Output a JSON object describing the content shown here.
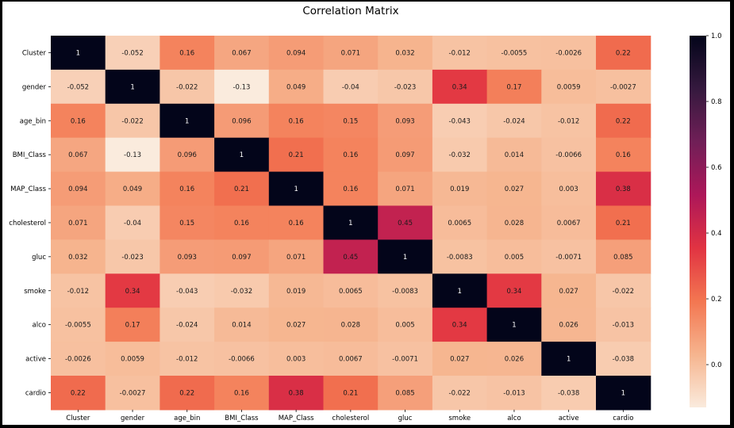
{
  "chart_data": {
    "type": "heatmap",
    "title": "Correlation Matrix",
    "labels": [
      "Cluster",
      "gender",
      "age_bin",
      "BMI_Class",
      "MAP_Class",
      "cholesterol",
      "gluc",
      "smoke",
      "alco",
      "active",
      "cardio"
    ],
    "values": [
      [
        "1",
        "-0.052",
        "0.16",
        "0.067",
        "0.094",
        "0.071",
        "0.032",
        "-0.012",
        "-0.0055",
        "-0.0026",
        "0.22"
      ],
      [
        "-0.052",
        "1",
        "-0.022",
        "-0.13",
        "0.049",
        "-0.04",
        "-0.023",
        "0.34",
        "0.17",
        "0.0059",
        "-0.0027"
      ],
      [
        "0.16",
        "-0.022",
        "1",
        "0.096",
        "0.16",
        "0.15",
        "0.093",
        "-0.043",
        "-0.024",
        "-0.012",
        "0.22"
      ],
      [
        "0.067",
        "-0.13",
        "0.096",
        "1",
        "0.21",
        "0.16",
        "0.097",
        "-0.032",
        "0.014",
        "-0.0066",
        "0.16"
      ],
      [
        "0.094",
        "0.049",
        "0.16",
        "0.21",
        "1",
        "0.16",
        "0.071",
        "0.019",
        "0.027",
        "0.003",
        "0.38"
      ],
      [
        "0.071",
        "-0.04",
        "0.15",
        "0.16",
        "0.16",
        "1",
        "0.45",
        "0.0065",
        "0.028",
        "0.0067",
        "0.21"
      ],
      [
        "0.032",
        "-0.023",
        "0.093",
        "0.097",
        "0.071",
        "0.45",
        "1",
        "-0.0083",
        "0.005",
        "-0.0071",
        "0.085"
      ],
      [
        "-0.012",
        "0.34",
        "-0.043",
        "-0.032",
        "0.019",
        "0.0065",
        "-0.0083",
        "1",
        "0.34",
        "0.027",
        "-0.022"
      ],
      [
        "-0.0055",
        "0.17",
        "-0.024",
        "0.014",
        "0.027",
        "0.028",
        "0.005",
        "0.34",
        "1",
        "0.026",
        "-0.013"
      ],
      [
        "-0.0026",
        "0.0059",
        "-0.012",
        "-0.0066",
        "0.003",
        "0.0067",
        "-0.0071",
        "0.027",
        "0.026",
        "1",
        "-0.038"
      ],
      [
        "0.22",
        "-0.0027",
        "0.22",
        "0.16",
        "0.38",
        "0.21",
        "0.085",
        "-0.022",
        "-0.013",
        "-0.038",
        "1"
      ]
    ],
    "colorbar": {
      "vmin": -0.13,
      "vmax": 1.0,
      "ticks": [
        "1.0",
        "0.8",
        "0.6",
        "0.4",
        "0.2",
        "0.0"
      ],
      "tick_values": [
        1.0,
        0.8,
        0.6,
        0.4,
        0.2,
        0.0
      ]
    },
    "colormap": "rocket_r",
    "colormap_stops": [
      "#FAEBDD",
      "#F6B48E",
      "#F37651",
      "#E13342",
      "#AD1759",
      "#701F57",
      "#35193E",
      "#03051A"
    ]
  }
}
